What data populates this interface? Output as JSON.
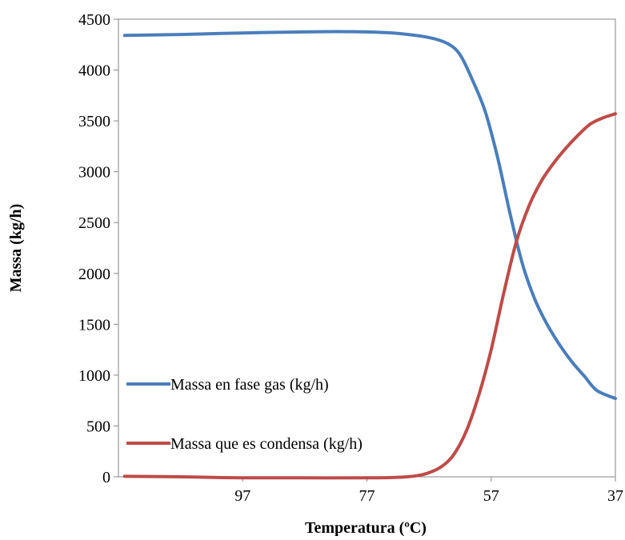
{
  "chart_data": {
    "type": "line",
    "xlabel": "Temperatura (ºC)",
    "ylabel": "Massa (kg/h)",
    "x_reversed": true,
    "xlim": [
      117,
      37
    ],
    "ylim": [
      0,
      4500
    ],
    "x_ticks": [
      97,
      77,
      57,
      37
    ],
    "x_tick_labels": [
      "97",
      "77",
      "57",
      "37"
    ],
    "y_ticks": [
      0,
      500,
      1000,
      1500,
      2000,
      2500,
      3000,
      3500,
      4000,
      4500
    ],
    "y_tick_labels": [
      "0",
      "500",
      "1000",
      "1500",
      "2000",
      "2500",
      "3000",
      "3500",
      "4000",
      "4500"
    ],
    "grid": false,
    "legend_position": "bottom-left",
    "series": [
      {
        "name": "Massa en fase gas (kg/h)",
        "color": "#4A7EBB",
        "points": [
          [
            116,
            4340
          ],
          [
            107,
            4350
          ],
          [
            97,
            4365
          ],
          [
            87,
            4375
          ],
          [
            82,
            4378
          ],
          [
            77,
            4375
          ],
          [
            72,
            4360
          ],
          [
            67,
            4320
          ],
          [
            64,
            4260
          ],
          [
            62,
            4150
          ],
          [
            60,
            3900
          ],
          [
            58,
            3600
          ],
          [
            56,
            3150
          ],
          [
            54,
            2600
          ],
          [
            52,
            2100
          ],
          [
            50,
            1750
          ],
          [
            48,
            1500
          ],
          [
            46,
            1300
          ],
          [
            44,
            1130
          ],
          [
            42,
            990
          ],
          [
            40,
            850
          ],
          [
            37,
            770
          ]
        ]
      },
      {
        "name": "Massa que es condensa (kg/h)",
        "color": "#BE4B48",
        "points": [
          [
            116,
            5
          ],
          [
            107,
            0
          ],
          [
            97,
            -10
          ],
          [
            87,
            -10
          ],
          [
            77,
            -10
          ],
          [
            72,
            -5
          ],
          [
            69,
            10
          ],
          [
            67,
            40
          ],
          [
            65,
            100
          ],
          [
            63,
            220
          ],
          [
            61,
            450
          ],
          [
            59,
            800
          ],
          [
            57,
            1250
          ],
          [
            55,
            1800
          ],
          [
            53,
            2300
          ],
          [
            51,
            2650
          ],
          [
            49,
            2900
          ],
          [
            47,
            3080
          ],
          [
            45,
            3230
          ],
          [
            43,
            3360
          ],
          [
            41,
            3470
          ],
          [
            39,
            3530
          ],
          [
            37,
            3570
          ]
        ]
      }
    ]
  }
}
